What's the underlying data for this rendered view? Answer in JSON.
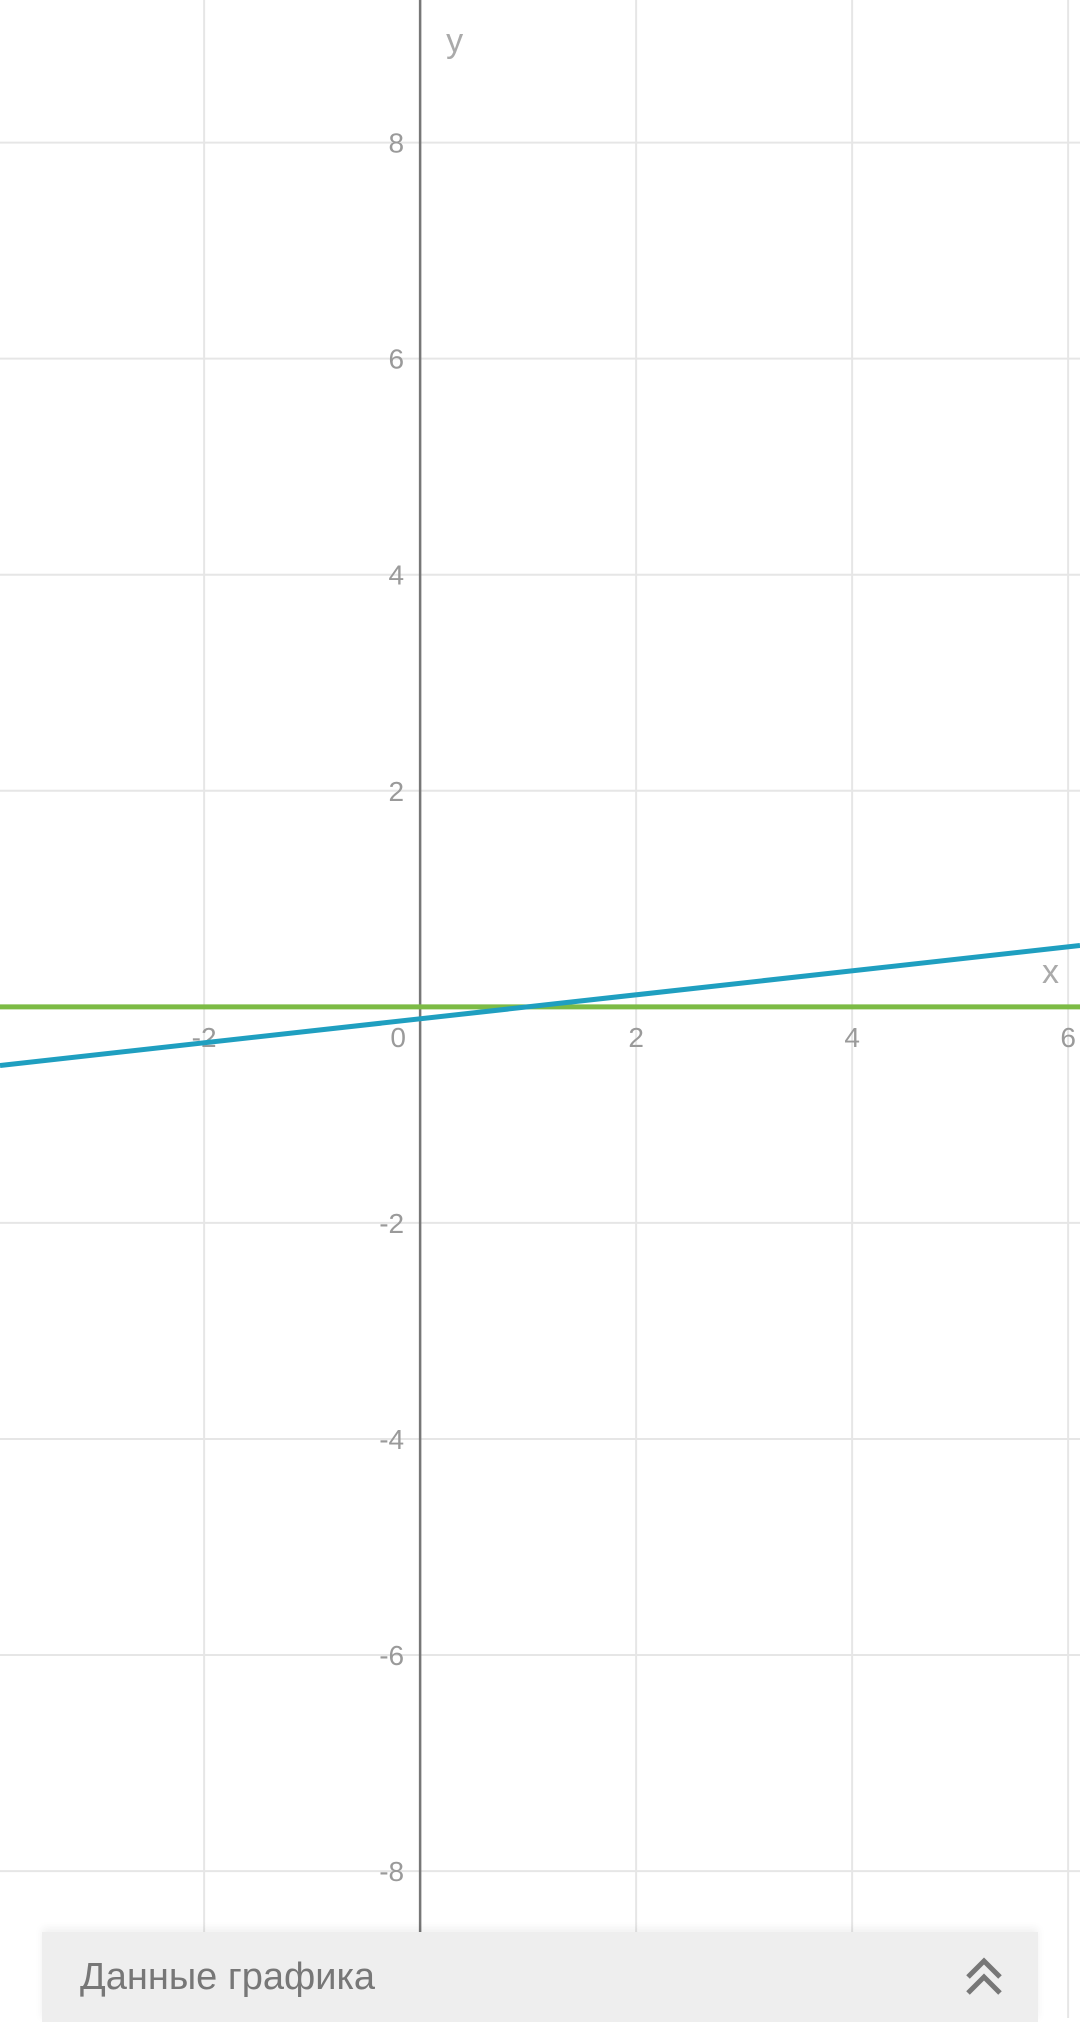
{
  "chart_data": {
    "type": "line",
    "title": "",
    "xlabel": "x",
    "ylabel": "y",
    "xlim": [
      -3.89,
      6.11
    ],
    "ylim": [
      -9.36,
      9.32
    ],
    "grid": true,
    "x_ticks": [
      -2,
      0,
      2,
      4,
      6
    ],
    "x_tick_labels": [
      "-2",
      "0",
      "2",
      "4",
      "6"
    ],
    "y_ticks": [
      8,
      6,
      4,
      2,
      -2,
      -4,
      -6,
      -8
    ],
    "y_tick_labels": [
      "8",
      "6",
      "4",
      "2",
      "-2",
      "-4",
      "-6",
      "-8"
    ],
    "series": [
      {
        "color": "#1f9fc0",
        "x": [
          -3.89,
          6.11
        ],
        "y": [
          -0.543,
          0.568
        ]
      },
      {
        "color": "#7cbb45",
        "x": [
          -3.89,
          6.11
        ],
        "y": [
          0,
          0
        ]
      }
    ]
  },
  "panel": {
    "title": "Данные графика",
    "icon": "chevron-double-up-icon"
  }
}
